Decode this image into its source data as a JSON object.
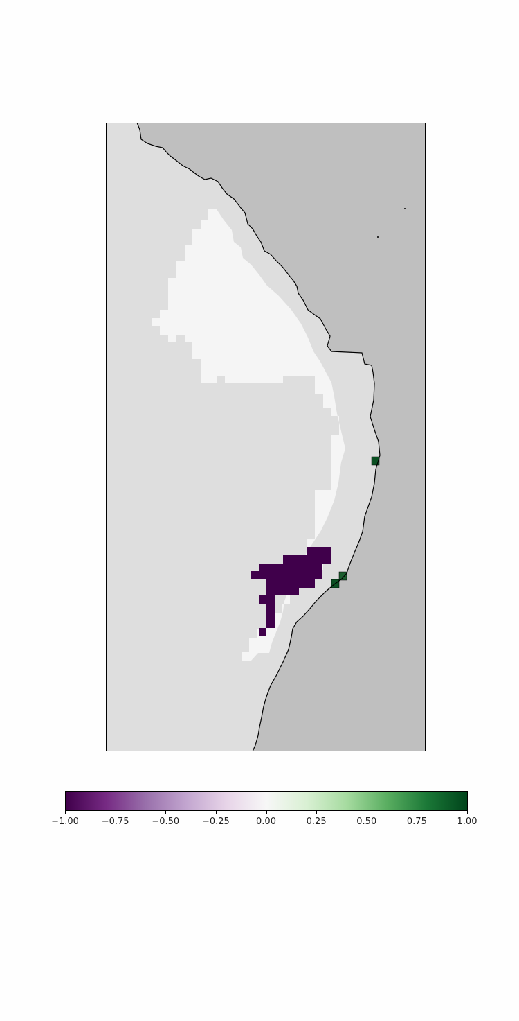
{
  "map": {
    "type": "gridded-raster-map",
    "colormap": "PRGn",
    "value_range": [
      -1.0,
      1.0
    ],
    "colors": {
      "ocean": "#bfbfbf",
      "land_no_data": "#dedede",
      "value_zero": "#f5f5f5",
      "value_negative_one": "#40004b",
      "value_positive_one": "#00441b",
      "coastline": "#000000"
    },
    "features": [
      "coastline",
      "zero-value-region",
      "negative-value-cluster",
      "positive-value-cells"
    ]
  },
  "colorbar": {
    "orientation": "horizontal",
    "min": -1.0,
    "max": 1.0,
    "stops": [
      "#40004b",
      "#762a83",
      "#9970ab",
      "#c2a5cf",
      "#e7d4e8",
      "#f7f7f7",
      "#d9f0d3",
      "#a6dba0",
      "#5aae61",
      "#1b7837",
      "#00441b"
    ],
    "ticks": [
      {
        "value": -1.0,
        "label": "−1.00"
      },
      {
        "value": -0.75,
        "label": "−0.75"
      },
      {
        "value": -0.5,
        "label": "−0.50"
      },
      {
        "value": -0.25,
        "label": "−0.25"
      },
      {
        "value": 0.0,
        "label": "0.00"
      },
      {
        "value": 0.25,
        "label": "0.25"
      },
      {
        "value": 0.5,
        "label": "0.50"
      },
      {
        "value": 0.75,
        "label": "0.75"
      },
      {
        "value": 1.0,
        "label": "1.00"
      }
    ]
  }
}
